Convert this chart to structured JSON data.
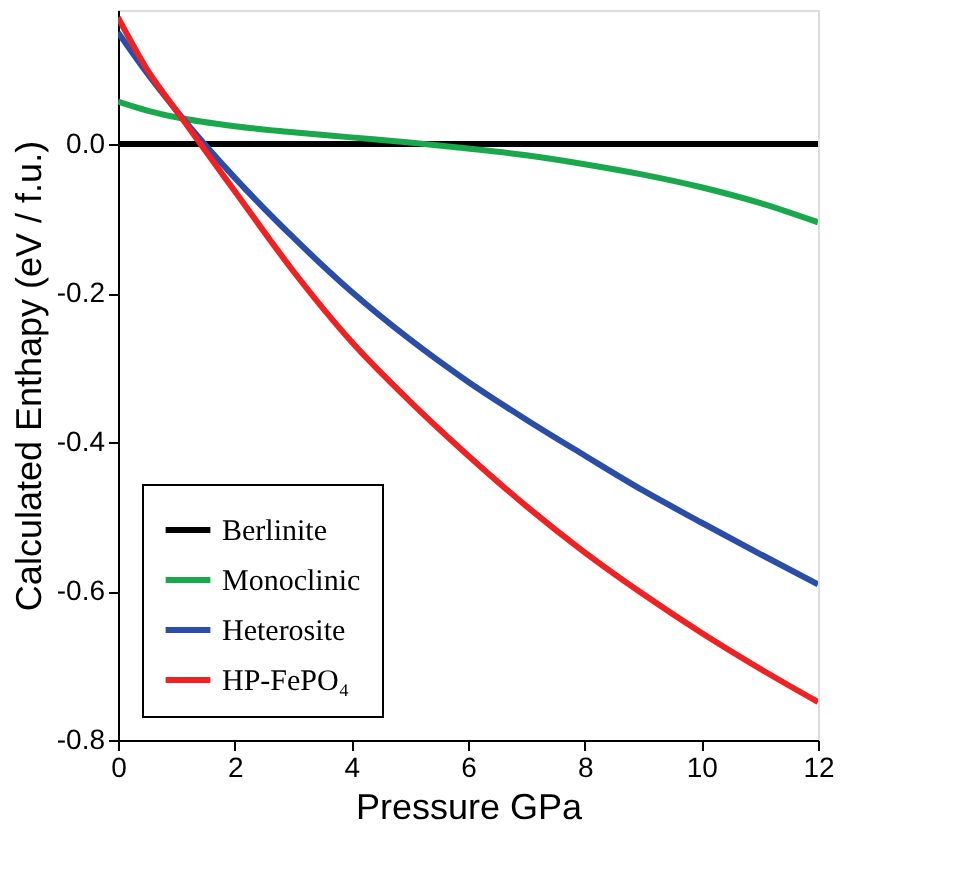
{
  "chart_data": {
    "type": "line",
    "xlabel": "Pressure GPa",
    "ylabel": "Calculated Enthapy (eV / f.u.)",
    "x": [
      0,
      0.5,
      1,
      2,
      3,
      4,
      5,
      6,
      7,
      8,
      9,
      10,
      11,
      12
    ],
    "series": [
      {
        "name": "Berlinite",
        "color": "#000000",
        "values": [
          0,
          0,
          0,
          0,
          0,
          0,
          0,
          0,
          0,
          0,
          0,
          0,
          0,
          0
        ]
      },
      {
        "name": "Monoclinic",
        "color": "#1aa84c",
        "values": [
          0.057,
          0.045,
          0.036,
          0.024,
          0.016,
          0.009,
          0.002,
          -0.006,
          -0.015,
          -0.027,
          -0.041,
          -0.058,
          -0.079,
          -0.105
        ]
      },
      {
        "name": "Heterosite",
        "color": "#2a4da8",
        "values": [
          0.15,
          0.095,
          0.045,
          -0.045,
          -0.125,
          -0.198,
          -0.262,
          -0.319,
          -0.37,
          -0.418,
          -0.465,
          -0.508,
          -0.55,
          -0.591
        ]
      },
      {
        "name": "HP-FePO₄",
        "color": "#ee2222",
        "values": [
          0.17,
          0.1,
          0.045,
          -0.063,
          -0.17,
          -0.265,
          -0.345,
          -0.418,
          -0.486,
          -0.548,
          -0.604,
          -0.656,
          -0.704,
          -0.749
        ]
      }
    ],
    "xlim": [
      0,
      12
    ],
    "xticks": [
      0,
      2,
      4,
      6,
      8,
      10,
      12
    ],
    "ylim": [
      -0.8,
      0.18
    ],
    "yticks": [
      {
        "value": -0.8,
        "label": "-0.8"
      },
      {
        "value": -0.6,
        "label": "-0.6"
      },
      {
        "value": -0.4,
        "label": "-0.4"
      },
      {
        "value": -0.2,
        "label": "-0.2"
      },
      {
        "value": 0,
        "label": "0.0"
      }
    ],
    "legend": "bottom left",
    "grid": false,
    "marker": "none",
    "line_style": "solid"
  }
}
